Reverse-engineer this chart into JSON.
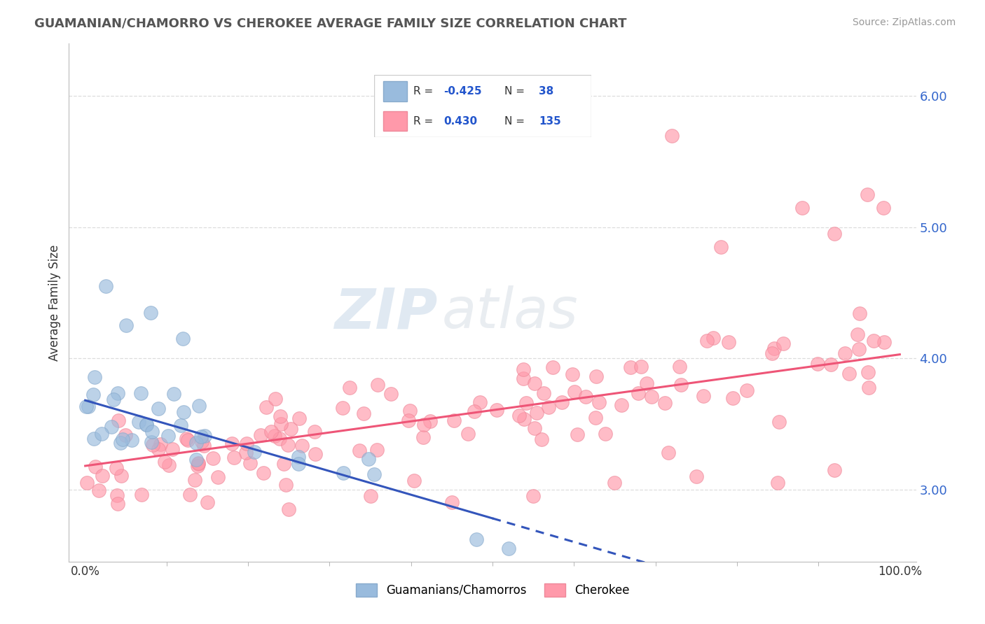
{
  "title": "GUAMANIAN/CHAMORRO VS CHEROKEE AVERAGE FAMILY SIZE CORRELATION CHART",
  "source": "Source: ZipAtlas.com",
  "ylabel": "Average Family Size",
  "xlim": [
    -2,
    102
  ],
  "ylim": [
    2.45,
    6.4
  ],
  "yticks": [
    3.0,
    4.0,
    5.0,
    6.0
  ],
  "xtick_labels": [
    "0.0%",
    "100.0%"
  ],
  "blue_color": "#99BBDD",
  "blue_edge_color": "#88AACC",
  "pink_color": "#FF99AA",
  "pink_edge_color": "#EE8899",
  "blue_line_color": "#3355BB",
  "pink_line_color": "#EE5577",
  "legend_label1": "Guamanians/Chamorros",
  "legend_label2": "Cherokee",
  "watermark_zip": "ZIP",
  "watermark_atlas": "atlas",
  "background_color": "#FFFFFF",
  "grid_color": "#DDDDDD",
  "title_color": "#555555",
  "source_color": "#999999",
  "ytick_color": "#3366CC",
  "blue_intercept": 3.68,
  "blue_slope": -0.018,
  "pink_intercept": 3.18,
  "pink_slope": 0.0085
}
